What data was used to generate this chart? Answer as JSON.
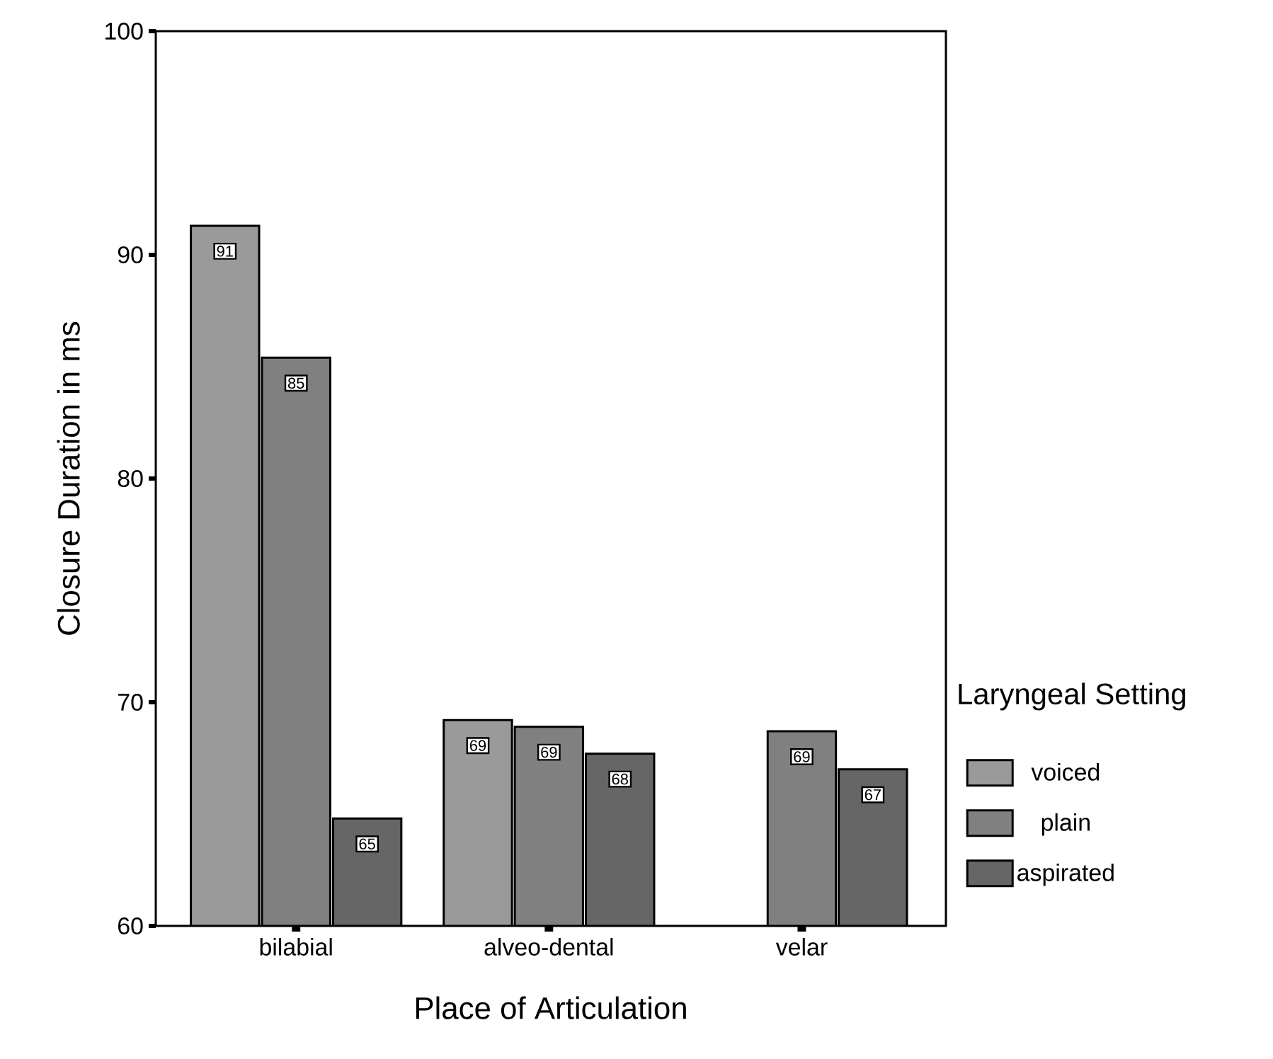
{
  "chart_data": {
    "type": "bar",
    "xlabel": "Place of Articulation",
    "ylabel": "Closure Duration in ms",
    "legend_title": "Laryngeal Setting",
    "categories": [
      "bilabial",
      "alveo-dental",
      "velar"
    ],
    "series": [
      {
        "name": "voiced",
        "color": "#9a9a9a",
        "values": [
          91.3,
          69.2,
          null
        ],
        "value_labels": [
          "91",
          "69",
          null
        ]
      },
      {
        "name": "plain",
        "color": "#808080",
        "values": [
          85.4,
          68.9,
          68.7
        ],
        "value_labels": [
          "85",
          "69",
          "69"
        ]
      },
      {
        "name": "aspirated",
        "color": "#666666",
        "values": [
          64.8,
          67.7,
          67.0
        ],
        "value_labels": [
          "65",
          "68",
          "67"
        ]
      }
    ],
    "ylim": [
      60,
      100
    ],
    "yticks": [
      60,
      70,
      80,
      90,
      100
    ],
    "grid": false,
    "legend": "right"
  }
}
